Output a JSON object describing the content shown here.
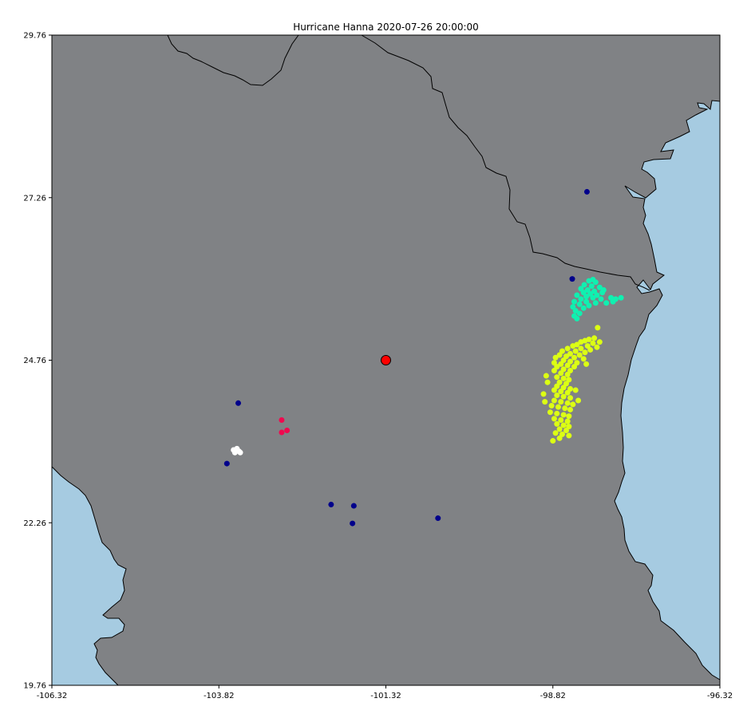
{
  "title": "Hurricane Hanna 2020-07-26 20:00:00",
  "x_ticks": [
    "-106.32",
    "-103.82",
    "-101.32",
    "-98.82",
    "-96.32"
  ],
  "y_ticks": [
    "29.76",
    "27.26",
    "24.76",
    "22.26",
    "19.76"
  ],
  "colors": {
    "land": "#808285",
    "water": "#a6cbe1",
    "coast": "#000000"
  },
  "chart_data": {
    "type": "scatter",
    "title": "Hurricane Hanna 2020-07-26 20:00:00",
    "xlim": [
      -106.32,
      -96.32
    ],
    "ylim": [
      19.76,
      29.76
    ],
    "center": {
      "lon": -101.32,
      "lat": 24.76,
      "color": "#ff0000"
    },
    "clusters": [
      {
        "name": "navy",
        "color": "#00008b",
        "points": [
          [
            -98.31,
            27.35
          ],
          [
            -98.53,
            26.01
          ],
          [
            -103.53,
            24.1
          ],
          [
            -103.7,
            23.17
          ],
          [
            -102.14,
            22.54
          ],
          [
            -101.8,
            22.52
          ],
          [
            -101.82,
            22.25
          ],
          [
            -100.54,
            22.33
          ]
        ]
      },
      {
        "name": "crimson",
        "color": "#f0094f",
        "points": [
          [
            -102.88,
            23.84
          ],
          [
            -102.8,
            23.68
          ],
          [
            -102.88,
            23.65
          ]
        ]
      },
      {
        "name": "white",
        "color": "#ffffff",
        "points": [
          [
            -103.55,
            23.4
          ],
          [
            -103.6,
            23.38
          ],
          [
            -103.52,
            23.36
          ],
          [
            -103.58,
            23.34
          ],
          [
            -103.5,
            23.34
          ]
        ]
      },
      {
        "name": "aquamarine",
        "color": "#10f0b0",
        "points": [
          [
            -98.22,
            26.0
          ],
          [
            -98.28,
            25.98
          ],
          [
            -98.18,
            25.96
          ],
          [
            -98.35,
            25.92
          ],
          [
            -98.24,
            25.9
          ],
          [
            -98.12,
            25.88
          ],
          [
            -98.4,
            25.86
          ],
          [
            -98.3,
            25.84
          ],
          [
            -98.2,
            25.82
          ],
          [
            -98.08,
            25.8
          ],
          [
            -98.36,
            25.8
          ],
          [
            -98.26,
            25.78
          ],
          [
            -98.16,
            25.76
          ],
          [
            -98.46,
            25.76
          ],
          [
            -98.32,
            25.74
          ],
          [
            -98.22,
            25.72
          ],
          [
            -97.95,
            25.72
          ],
          [
            -97.8,
            25.72
          ],
          [
            -98.4,
            25.7
          ],
          [
            -98.1,
            25.7
          ],
          [
            -97.88,
            25.7
          ],
          [
            -98.5,
            25.66
          ],
          [
            -98.32,
            25.66
          ],
          [
            -98.18,
            25.64
          ],
          [
            -98.02,
            25.64
          ],
          [
            -98.42,
            25.62
          ],
          [
            -98.28,
            25.6
          ],
          [
            -98.52,
            25.58
          ],
          [
            -98.36,
            25.56
          ],
          [
            -98.48,
            25.52
          ],
          [
            -98.42,
            25.48
          ],
          [
            -98.5,
            25.44
          ],
          [
            -98.46,
            25.4
          ],
          [
            -97.92,
            25.66
          ],
          [
            -98.06,
            25.84
          ]
        ]
      },
      {
        "name": "chartreuse",
        "color": "#dcff14",
        "points": [
          [
            -98.15,
            25.26
          ],
          [
            -98.2,
            25.1
          ],
          [
            -98.28,
            25.08
          ],
          [
            -98.12,
            25.04
          ],
          [
            -98.34,
            25.06
          ],
          [
            -98.4,
            25.04
          ],
          [
            -98.22,
            25.02
          ],
          [
            -98.46,
            25.0
          ],
          [
            -98.3,
            24.98
          ],
          [
            -98.52,
            24.98
          ],
          [
            -98.16,
            24.96
          ],
          [
            -98.4,
            24.94
          ],
          [
            -98.6,
            24.94
          ],
          [
            -98.26,
            24.92
          ],
          [
            -98.48,
            24.9
          ],
          [
            -98.68,
            24.9
          ],
          [
            -98.34,
            24.88
          ],
          [
            -98.56,
            24.86
          ],
          [
            -98.72,
            24.84
          ],
          [
            -98.42,
            24.84
          ],
          [
            -98.62,
            24.82
          ],
          [
            -98.5,
            24.8
          ],
          [
            -98.78,
            24.8
          ],
          [
            -98.36,
            24.78
          ],
          [
            -98.66,
            24.76
          ],
          [
            -98.56,
            24.74
          ],
          [
            -98.8,
            24.72
          ],
          [
            -98.46,
            24.72
          ],
          [
            -98.7,
            24.7
          ],
          [
            -98.6,
            24.68
          ],
          [
            -98.5,
            24.66
          ],
          [
            -98.76,
            24.66
          ],
          [
            -98.66,
            24.62
          ],
          [
            -98.56,
            24.6
          ],
          [
            -98.8,
            24.6
          ],
          [
            -98.7,
            24.56
          ],
          [
            -98.6,
            24.54
          ],
          [
            -98.76,
            24.5
          ],
          [
            -98.66,
            24.48
          ],
          [
            -98.58,
            24.46
          ],
          [
            -98.92,
            24.52
          ],
          [
            -98.9,
            24.42
          ],
          [
            -98.72,
            24.42
          ],
          [
            -98.62,
            24.4
          ],
          [
            -98.76,
            24.36
          ],
          [
            -98.66,
            24.34
          ],
          [
            -98.56,
            24.32
          ],
          [
            -98.8,
            24.3
          ],
          [
            -98.7,
            24.28
          ],
          [
            -98.96,
            24.24
          ],
          [
            -98.6,
            24.26
          ],
          [
            -98.76,
            24.22
          ],
          [
            -98.66,
            24.2
          ],
          [
            -98.56,
            24.18
          ],
          [
            -98.94,
            24.12
          ],
          [
            -98.8,
            24.14
          ],
          [
            -98.7,
            24.12
          ],
          [
            -98.6,
            24.1
          ],
          [
            -98.52,
            24.08
          ],
          [
            -98.84,
            24.06
          ],
          [
            -98.74,
            24.04
          ],
          [
            -98.64,
            24.02
          ],
          [
            -98.56,
            24.0
          ],
          [
            -98.86,
            23.96
          ],
          [
            -98.76,
            23.94
          ],
          [
            -98.66,
            23.92
          ],
          [
            -98.58,
            23.9
          ],
          [
            -98.8,
            23.86
          ],
          [
            -98.7,
            23.84
          ],
          [
            -98.6,
            23.82
          ],
          [
            -98.76,
            23.78
          ],
          [
            -98.66,
            23.76
          ],
          [
            -98.58,
            23.74
          ],
          [
            -98.72,
            23.7
          ],
          [
            -98.62,
            23.68
          ],
          [
            -98.78,
            23.64
          ],
          [
            -98.68,
            23.62
          ],
          [
            -98.58,
            23.6
          ],
          [
            -98.72,
            23.56
          ],
          [
            -98.82,
            23.52
          ],
          [
            -98.32,
            24.7
          ],
          [
            -98.48,
            24.3
          ],
          [
            -98.44,
            24.14
          ]
        ]
      }
    ]
  }
}
